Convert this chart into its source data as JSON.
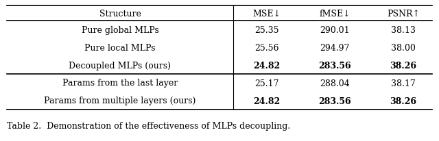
{
  "col_headers": [
    "Structure",
    "MSE↓",
    "fMSE↓",
    "PSNR↑"
  ],
  "rows": [
    {
      "label": "Pure global MLPs",
      "values": [
        "25.35",
        "290.01",
        "38.13"
      ],
      "bold": [
        false,
        false,
        false
      ],
      "group": 1
    },
    {
      "label": "Pure local MLPs",
      "values": [
        "25.56",
        "294.97",
        "38.00"
      ],
      "bold": [
        false,
        false,
        false
      ],
      "group": 1
    },
    {
      "label": "Decoupled MLPs (ours)",
      "values": [
        "24.82",
        "283.56",
        "38.26"
      ],
      "bold": [
        true,
        true,
        true
      ],
      "group": 1
    },
    {
      "label": "Params from the last layer",
      "values": [
        "25.17",
        "288.04",
        "38.17"
      ],
      "bold": [
        false,
        false,
        false
      ],
      "group": 2
    },
    {
      "label": "Params from multiple layers (ours)",
      "values": [
        "24.82",
        "283.56",
        "38.26"
      ],
      "bold": [
        true,
        true,
        true
      ],
      "group": 2
    }
  ],
  "caption": "Table 2.  Demonstration of the effectiveness of MLPs decoupling.",
  "fig_width": 6.4,
  "fig_height": 2.06,
  "font_size": 9.0,
  "caption_font_size": 9.0
}
